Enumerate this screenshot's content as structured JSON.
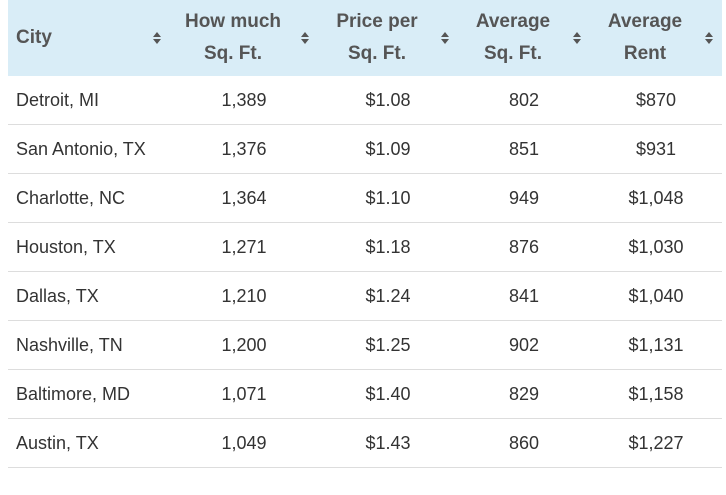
{
  "table": {
    "headers": [
      [
        "City"
      ],
      [
        "How much",
        "Sq. Ft."
      ],
      [
        "Price per",
        "Sq. Ft."
      ],
      [
        "Average",
        "Sq. Ft."
      ],
      [
        "Average",
        "Rent"
      ]
    ],
    "rows": [
      [
        "Detroit, MI",
        "1,389",
        "$1.08",
        "802",
        "$870"
      ],
      [
        "San Antonio, TX",
        "1,376",
        "$1.09",
        "851",
        "$931"
      ],
      [
        "Charlotte, NC",
        "1,364",
        "$1.10",
        "949",
        "$1,048"
      ],
      [
        "Houston, TX",
        "1,271",
        "$1.18",
        "876",
        "$1,030"
      ],
      [
        "Dallas, TX",
        "1,210",
        "$1.24",
        "841",
        "$1,040"
      ],
      [
        "Nashville, TN",
        "1,200",
        "$1.25",
        "902",
        "$1,131"
      ],
      [
        "Baltimore, MD",
        "1,071",
        "$1.40",
        "829",
        "$1,158"
      ],
      [
        "Austin, TX",
        "1,049",
        "$1.43",
        "860",
        "$1,227"
      ]
    ]
  }
}
